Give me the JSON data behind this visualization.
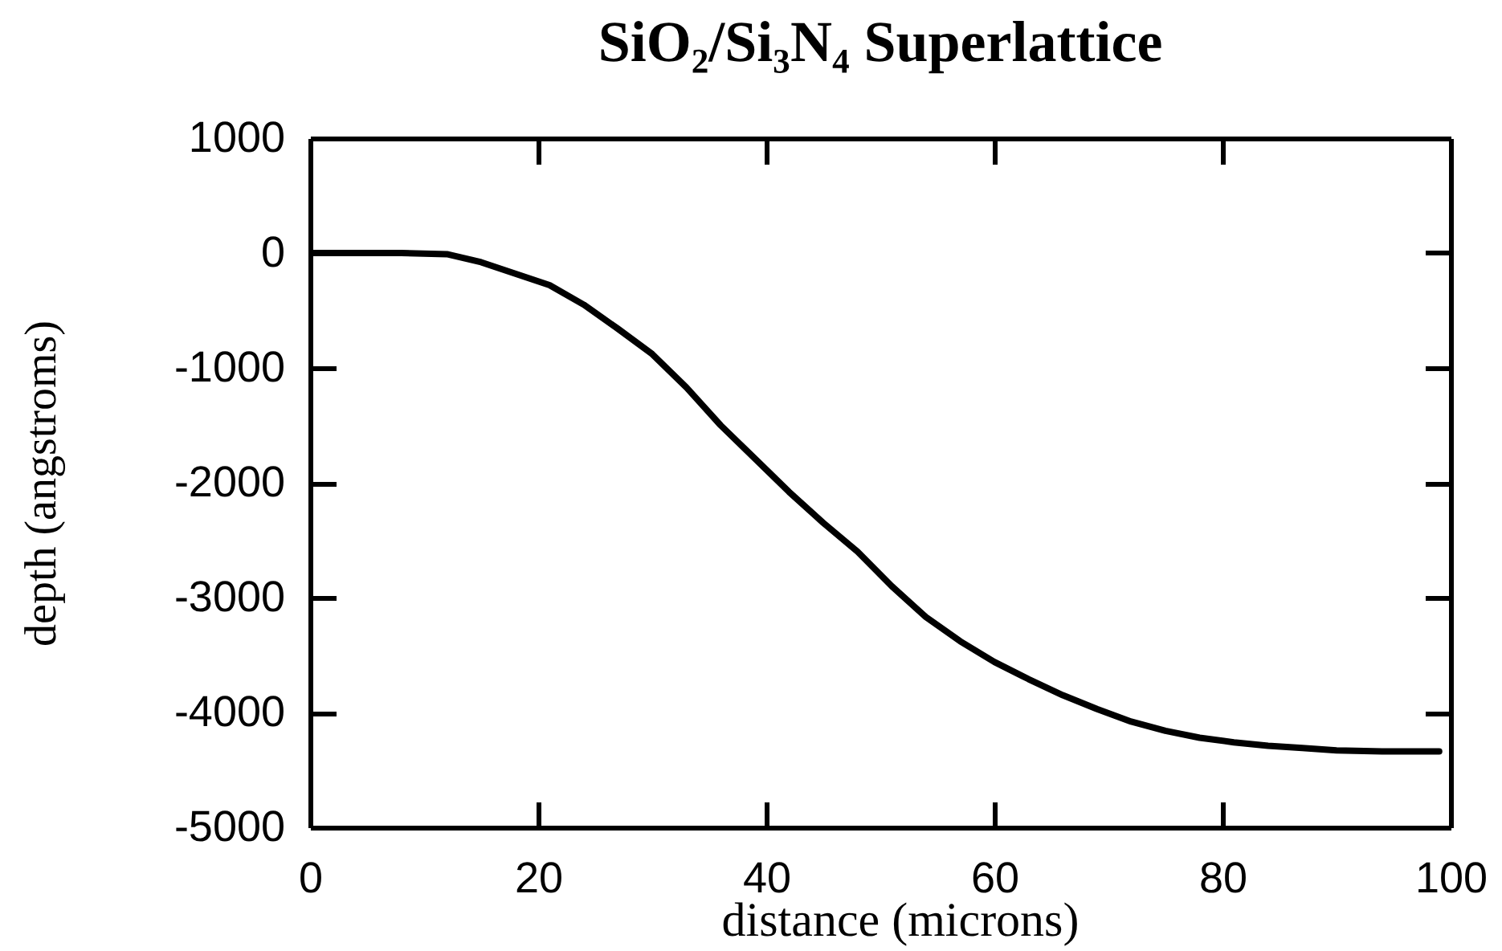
{
  "chart_data": {
    "type": "line",
    "title": "SiO₂/Si₃N₄ Superlattice",
    "xlabel": "distance (microns)",
    "ylabel": "depth (angstroms)",
    "x": [
      0,
      4,
      8,
      12,
      15,
      18,
      21,
      24,
      27,
      30,
      33,
      36,
      39,
      42,
      45,
      48,
      51,
      54,
      57,
      60,
      63,
      66,
      69,
      72,
      75,
      78,
      81,
      84,
      87,
      90,
      94,
      99
    ],
    "series": [
      {
        "color": "#000000",
        "values": [
          0,
          0,
          0,
          -10,
          -80,
          -180,
          -280,
          -450,
          -660,
          -880,
          -1170,
          -1500,
          -1790,
          -2080,
          -2350,
          -2600,
          -2900,
          -3170,
          -3380,
          -3560,
          -3710,
          -3850,
          -3970,
          -4080,
          -4160,
          -4220,
          -4260,
          -4290,
          -4310,
          -4330,
          -4340,
          -4340
        ]
      }
    ],
    "xlim": [
      0,
      100
    ],
    "ylim": [
      -5000,
      1000
    ],
    "xticks": [
      0,
      20,
      40,
      60,
      80,
      100
    ],
    "yticks": [
      -5000,
      -4000,
      -3000,
      -2000,
      -1000,
      0,
      1000
    ],
    "line_style": "solid"
  }
}
